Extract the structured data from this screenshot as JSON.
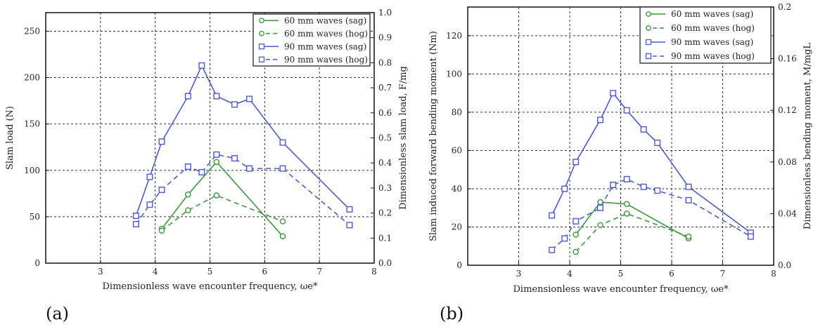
{
  "chart_data": [
    {
      "type": "line",
      "panel_label": "(a)",
      "xlabel": "Dimensionless wave encounter frequency, ωe*",
      "ylabel": "Slam load (N)",
      "y2label": "Dimensionless slam load,  F/mg",
      "xlim": [
        2,
        8
      ],
      "ylim": [
        0,
        270
      ],
      "y2lim": [
        0,
        1.0
      ],
      "xticks": [
        "3",
        "4",
        "5",
        "6",
        "7",
        "8"
      ],
      "yticks": [
        "0",
        "50",
        "100",
        "150",
        "200",
        "250"
      ],
      "y2ticks": [
        "0.0",
        "0.1",
        "0.2",
        "0.3",
        "0.4",
        "0.5",
        "0.6",
        "0.7",
        "0.8",
        "0.9",
        "1.0"
      ],
      "grid": true,
      "legend_position": "top-right",
      "series": [
        {
          "name": "60 mm waves (sag)",
          "color": "#3a9a3a",
          "marker": "circle",
          "dash": false,
          "x": [
            4.12,
            4.6,
            5.12,
            6.33
          ],
          "y": [
            37,
            74,
            109,
            29
          ]
        },
        {
          "name": "60 mm waves (hog)",
          "color": "#3a9a3a",
          "marker": "circle",
          "dash": true,
          "x": [
            4.12,
            4.6,
            5.12,
            6.33
          ],
          "y": [
            35,
            57,
            73,
            45
          ]
        },
        {
          "name": "90 mm waves (sag)",
          "color": "#4a5ad8",
          "marker": "square",
          "dash": false,
          "x": [
            3.65,
            3.9,
            4.12,
            4.6,
            4.85,
            5.12,
            5.45,
            5.72,
            6.33,
            7.55
          ],
          "y": [
            51,
            93,
            131,
            180,
            213,
            180,
            171,
            177,
            130,
            58
          ]
        },
        {
          "name": "90 mm waves (hog)",
          "color": "#4a5ad8",
          "marker": "square",
          "dash": true,
          "x": [
            3.65,
            3.9,
            4.12,
            4.6,
            4.85,
            5.12,
            5.45,
            5.72,
            6.33,
            7.55
          ],
          "y": [
            42,
            63,
            79,
            104,
            98,
            117,
            113,
            102,
            102,
            41
          ]
        }
      ]
    },
    {
      "type": "line",
      "panel_label": "(b)",
      "xlabel": "Dimensionless wave encounter frequency, ωe*",
      "ylabel": "Slam induced forward bending moment (Nm)",
      "y2label": "Dimensionless bending moment,  M/mgL",
      "xlim": [
        2,
        8
      ],
      "ylim": [
        0,
        135
      ],
      "y2lim": [
        0,
        0.2
      ],
      "xticks": [
        "3",
        "4",
        "5",
        "6",
        "7",
        "8"
      ],
      "yticks": [
        "0",
        "20",
        "40",
        "60",
        "80",
        "100",
        "120"
      ],
      "y2ticks": [
        "0.0",
        "0.04",
        "0.08",
        "0.12",
        "0.16",
        "0.2"
      ],
      "grid": true,
      "legend_position": "top-right",
      "series": [
        {
          "name": "60 mm waves (sag)",
          "color": "#3a9a3a",
          "marker": "circle",
          "dash": false,
          "x": [
            4.12,
            4.6,
            5.12,
            6.33
          ],
          "y": [
            16,
            33,
            32,
            14
          ]
        },
        {
          "name": "60 mm waves (hog)",
          "color": "#3a9a3a",
          "marker": "circle",
          "dash": true,
          "x": [
            4.12,
            4.6,
            5.12,
            6.33
          ],
          "y": [
            7,
            21,
            27,
            15
          ]
        },
        {
          "name": "90 mm waves (sag)",
          "color": "#4a5ad8",
          "marker": "square",
          "dash": false,
          "x": [
            3.65,
            3.9,
            4.12,
            4.6,
            4.85,
            5.12,
            5.45,
            5.72,
            6.33,
            7.55
          ],
          "y": [
            26,
            40,
            54,
            76,
            90,
            81,
            71,
            64,
            41,
            17
          ]
        },
        {
          "name": "90 mm waves (hog)",
          "color": "#4a5ad8",
          "marker": "square",
          "dash": true,
          "x": [
            3.65,
            3.9,
            4.12,
            4.6,
            4.85,
            5.12,
            5.45,
            5.72,
            6.33,
            7.55
          ],
          "y": [
            8,
            14,
            23,
            30,
            42,
            45,
            41,
            39,
            34,
            15
          ]
        }
      ]
    }
  ]
}
